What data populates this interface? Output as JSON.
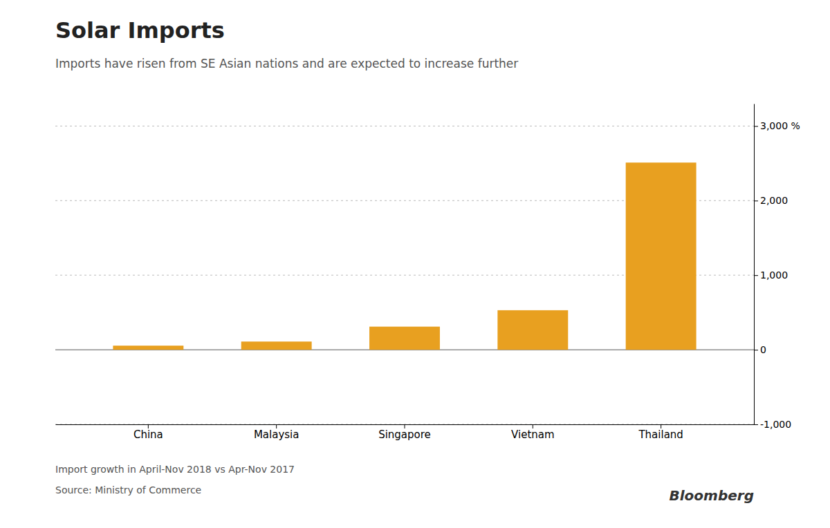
{
  "chart_data": {
    "type": "bar",
    "title": "Solar Imports",
    "subtitle": "Imports have risen from SE Asian nations and are expected to increase further",
    "categories": [
      "China",
      "Malaysia",
      "Singapore",
      "Vietnam",
      "Thailand"
    ],
    "values": [
      55,
      110,
      310,
      530,
      2510
    ],
    "color": "#E8A020",
    "ylim": [
      -1000,
      3300
    ],
    "yticks": [
      {
        "value": -1000,
        "label": "-1,000"
      },
      0,
      {
        "value": 1000,
        "label": "1,000"
      },
      {
        "value": 2000,
        "label": "2,000"
      },
      {
        "value": 3000,
        "label": "3,000 %"
      }
    ],
    "grid": true,
    "annotations": [
      "Import growth in April-Nov 2018 vs Apr-Nov 2017",
      "Source: Ministry of Commerce",
      "Bloomberg"
    ]
  }
}
